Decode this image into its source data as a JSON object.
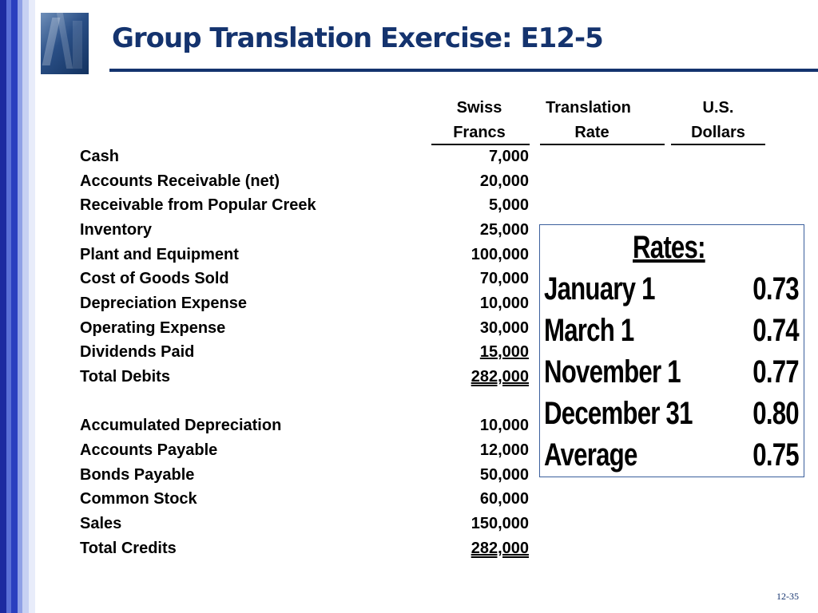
{
  "title": "Group Translation Exercise: E12-5",
  "headers": {
    "col1_line1": "Swiss",
    "col1_line2": "Francs",
    "col2_line1": "Translation",
    "col2_line2": "Rate",
    "col3_line1": "U.S.",
    "col3_line2": "Dollars"
  },
  "debits": [
    {
      "label": "Cash",
      "amount": "7,000"
    },
    {
      "label": "Accounts Receivable (net)",
      "amount": "20,000"
    },
    {
      "label": "Receivable from Popular Creek",
      "amount": "5,000"
    },
    {
      "label": "Inventory",
      "amount": "25,000"
    },
    {
      "label": "Plant and Equipment",
      "amount": "100,000"
    },
    {
      "label": "Cost of Goods Sold",
      "amount": "70,000"
    },
    {
      "label": "Depreciation Expense",
      "amount": "10,000"
    },
    {
      "label": "Operating Expense",
      "amount": "30,000"
    },
    {
      "label": "Dividends Paid",
      "amount": "15,000"
    },
    {
      "label": "Total Debits",
      "amount": "282,000"
    }
  ],
  "credits": [
    {
      "label": "Accumulated Depreciation",
      "amount": "10,000"
    },
    {
      "label": "Accounts Payable",
      "amount": "12,000"
    },
    {
      "label": "Bonds Payable",
      "amount": "50,000"
    },
    {
      "label": "Common Stock",
      "amount": "60,000"
    },
    {
      "label": "Sales",
      "amount": "150,000"
    },
    {
      "label": "Total Credits",
      "amount": "282,000"
    }
  ],
  "rates": {
    "title": "Rates:",
    "items": [
      {
        "label": "January 1",
        "value": "0.73"
      },
      {
        "label": "March 1",
        "value": "0.74"
      },
      {
        "label": "November 1",
        "value": "0.77"
      },
      {
        "label": "December 31",
        "value": "0.80"
      },
      {
        "label": "Average",
        "value": "0.75"
      }
    ]
  },
  "slide_number": "12-35",
  "colors": {
    "title": "#14336e",
    "stripe_dark": "#1a2fa8",
    "stripe_light": "#c9d3f2",
    "box_border": "#3b5f9c"
  }
}
